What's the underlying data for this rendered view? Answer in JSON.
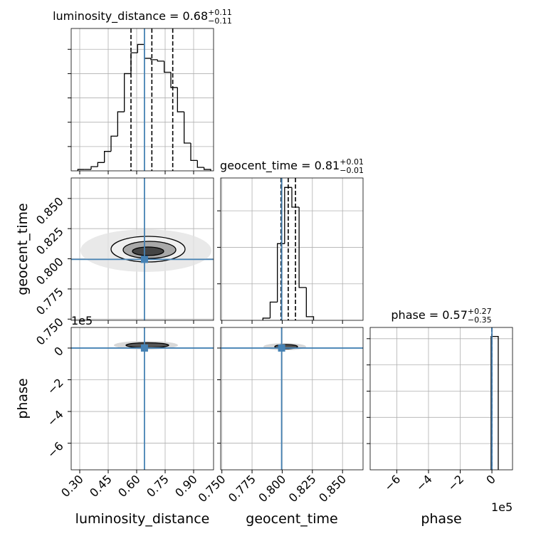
{
  "chart_data": {
    "type": "corner",
    "color": "#000000",
    "truth_color": "#4682b4",
    "grid": true,
    "parameters": [
      {
        "name": "luminosity_distance",
        "title": "luminosity_distance = 0.68",
        "upper": "+0.11",
        "lower": "−0.11",
        "lim": [
          0.255,
          1.005
        ],
        "ticks": [
          {
            "value": 0.3,
            "label": "0.30"
          },
          0.45,
          {
            "value": 0.6,
            "label": "0.60"
          },
          0.75,
          {
            "value": 0.9,
            "label": "0.90"
          }
        ],
        "truth": 0.641,
        "quantiles": [
          0.57,
          0.68,
          0.79
        ],
        "bins": [
          0.29,
          0.325,
          0.36,
          0.395,
          0.43,
          0.465,
          0.5,
          0.535,
          0.57,
          0.605,
          0.64,
          0.675,
          0.71,
          0.745,
          0.78,
          0.815,
          0.85,
          0.885,
          0.92,
          0.955,
          0.99
        ],
        "counts": [
          2,
          2,
          6,
          12,
          28,
          50,
          85,
          140,
          170,
          182,
          162,
          160,
          158,
          142,
          120,
          85,
          40,
          15,
          5,
          2
        ],
        "hist_ylim": [
          0,
          205
        ],
        "hist_yticks": [
          35,
          70,
          105,
          140,
          175
        ]
      },
      {
        "name": "geocent_time",
        "title": "geocent_time = 0.81",
        "upper": "+0.01",
        "lower": "−0.01",
        "lim": [
          0.749,
          0.867
        ],
        "ticks": [
          {
            "value": 0.75,
            "label": "0.750"
          },
          0.775,
          {
            "value": 0.8,
            "label": "0.800"
          },
          0.825,
          {
            "value": 0.85,
            "label": "0.850"
          }
        ],
        "truth": 0.7995,
        "quantiles": [
          0.799,
          0.805,
          0.811
        ],
        "bins": [
          0.784,
          0.79,
          0.796,
          0.802,
          0.808,
          0.814,
          0.82,
          0.826
        ],
        "counts": [
          3,
          25,
          105,
          182,
          155,
          45,
          5
        ],
        "hist_ylim": [
          0,
          195
        ],
        "hist_yticks": [
          50,
          100,
          150
        ]
      },
      {
        "name": "phase",
        "title": "phase = 0.57",
        "upper": "+0.27",
        "lower": "−0.35",
        "lim": [
          -768000,
          130000
        ],
        "ticks": [
          {
            "value": -600000,
            "label": "−6"
          },
          {
            "value": -400000,
            "label": "−4"
          },
          {
            "value": -200000,
            "label": "−2"
          },
          0
        ],
        "offset": "1e5",
        "truth": 0,
        "quantiles": [
          0.22,
          0.57,
          0.84
        ],
        "bins": [
          -5000,
          40000
        ],
        "counts": [
          178
        ],
        "hist_ylim": [
          0,
          190
        ],
        "hist_yticks": [
          35,
          70,
          105,
          140,
          175
        ]
      }
    ]
  }
}
